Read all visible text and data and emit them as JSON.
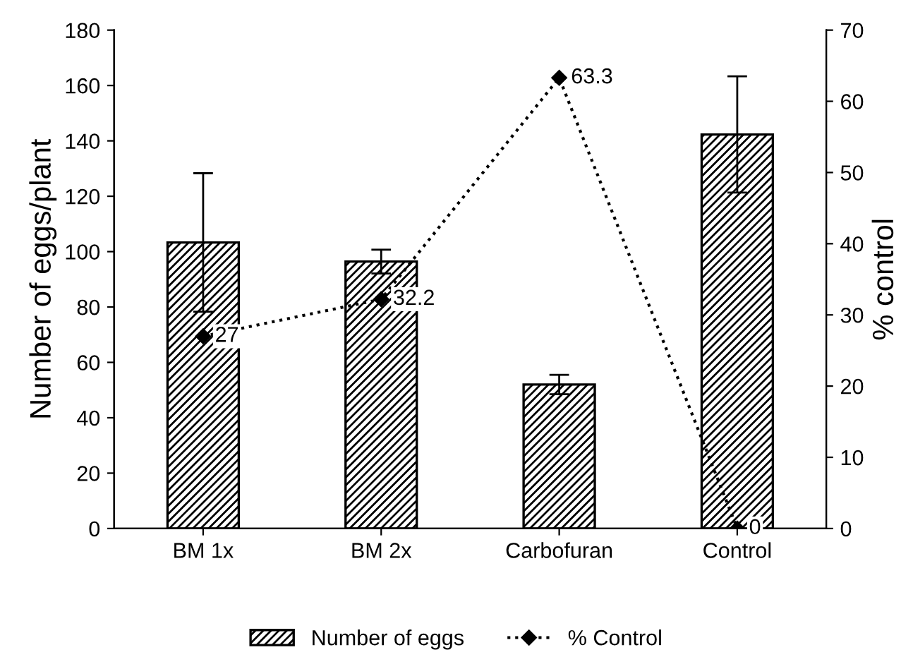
{
  "chart_data": {
    "type": "bar",
    "categories": [
      "BM 1x",
      "BM 2x",
      "Carbofuran",
      "Control"
    ],
    "ylabel": "Number of eggs/plant",
    "y2label": "% control",
    "ylim": [
      0,
      180
    ],
    "yticks": [
      0,
      20,
      40,
      60,
      80,
      100,
      120,
      140,
      160,
      180
    ],
    "y2lim": [
      0,
      70
    ],
    "y2ticks": [
      0,
      10,
      20,
      30,
      40,
      50,
      60,
      70
    ],
    "legend": "bottom",
    "grid": false,
    "series": [
      {
        "name": "Number of eggs",
        "color": "#000000",
        "values": [
          103.3,
          96.4,
          52.0,
          142.3
        ],
        "errors": [
          25,
          4.3,
          3.5,
          21
        ]
      },
      {
        "name": "% Control",
        "type": "line",
        "axis": "y2",
        "color": "#000000",
        "values": [
          27,
          32.2,
          63.3,
          0
        ],
        "marker": "diamond",
        "line_style": "dotted",
        "data_labels": true
      }
    ]
  }
}
